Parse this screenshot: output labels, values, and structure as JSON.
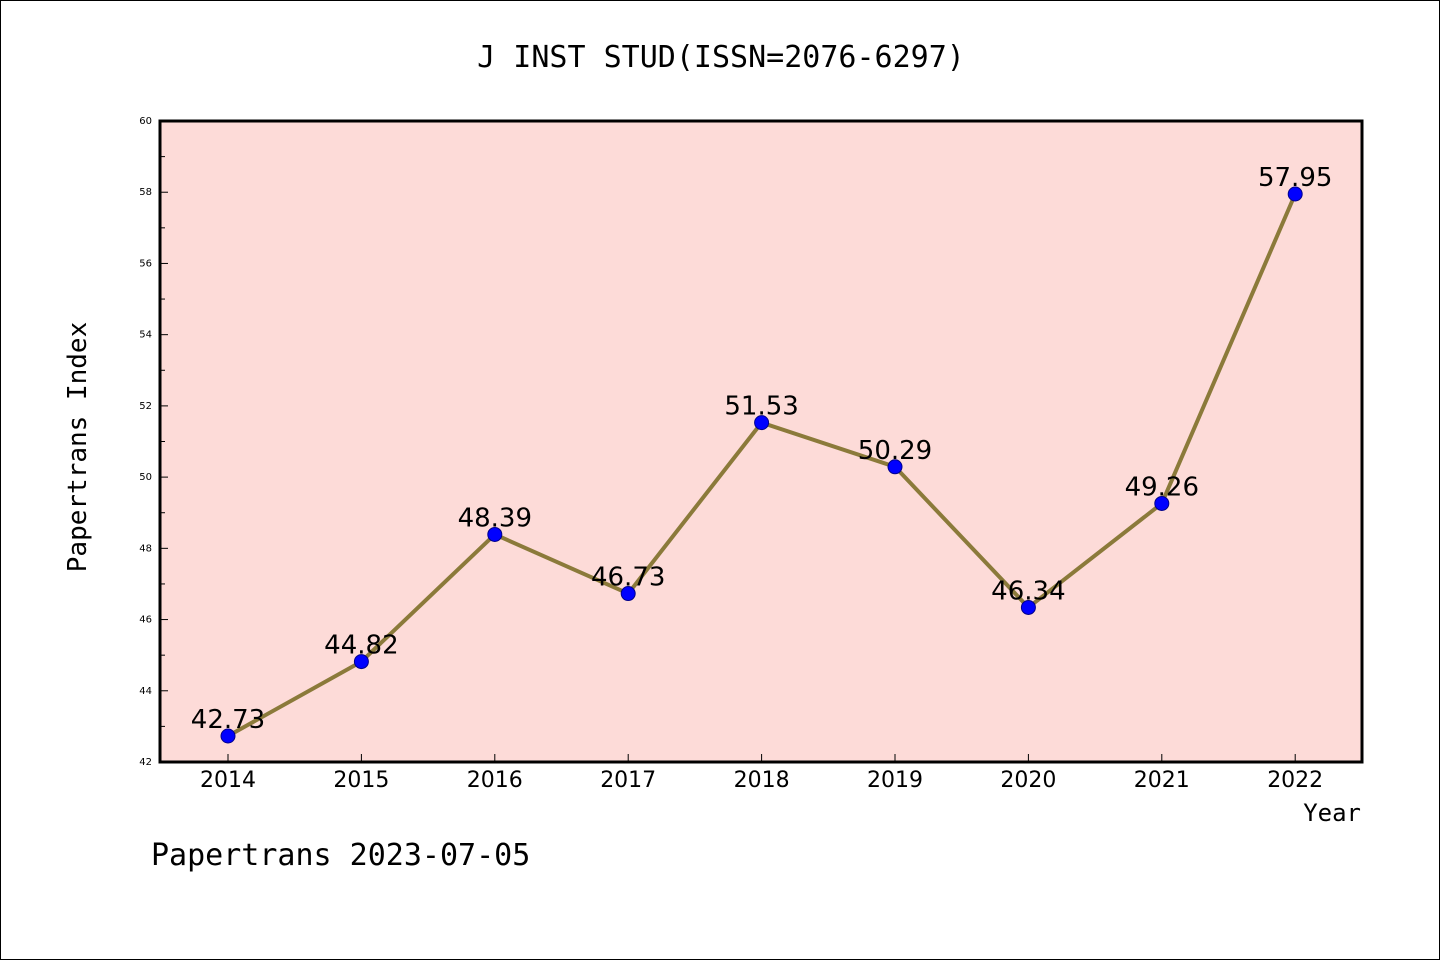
{
  "chart_data": {
    "type": "line",
    "title": "J INST STUD(ISSN=2076-6297)",
    "xlabel": "Year",
    "ylabel": "Papertrans Index",
    "footer": "Papertrans 2023-07-05",
    "categories": [
      "2014",
      "2015",
      "2016",
      "2017",
      "2018",
      "2019",
      "2020",
      "2021",
      "2022"
    ],
    "values": [
      42.73,
      44.82,
      48.39,
      46.73,
      51.53,
      50.29,
      46.34,
      49.26,
      57.95
    ],
    "data_labels": [
      "42.73",
      "44.82",
      "48.39",
      "46.73",
      "51.53",
      "50.29",
      "46.34",
      "49.26",
      "57.95"
    ],
    "ylim": [
      42,
      60
    ],
    "yticks": [
      42,
      44,
      46,
      48,
      50,
      52,
      54,
      56,
      58,
      60
    ],
    "grid": false,
    "colors": {
      "plot_background": "#fddbd8",
      "line": "#8b7a3a",
      "marker": "#0000ff"
    }
  }
}
